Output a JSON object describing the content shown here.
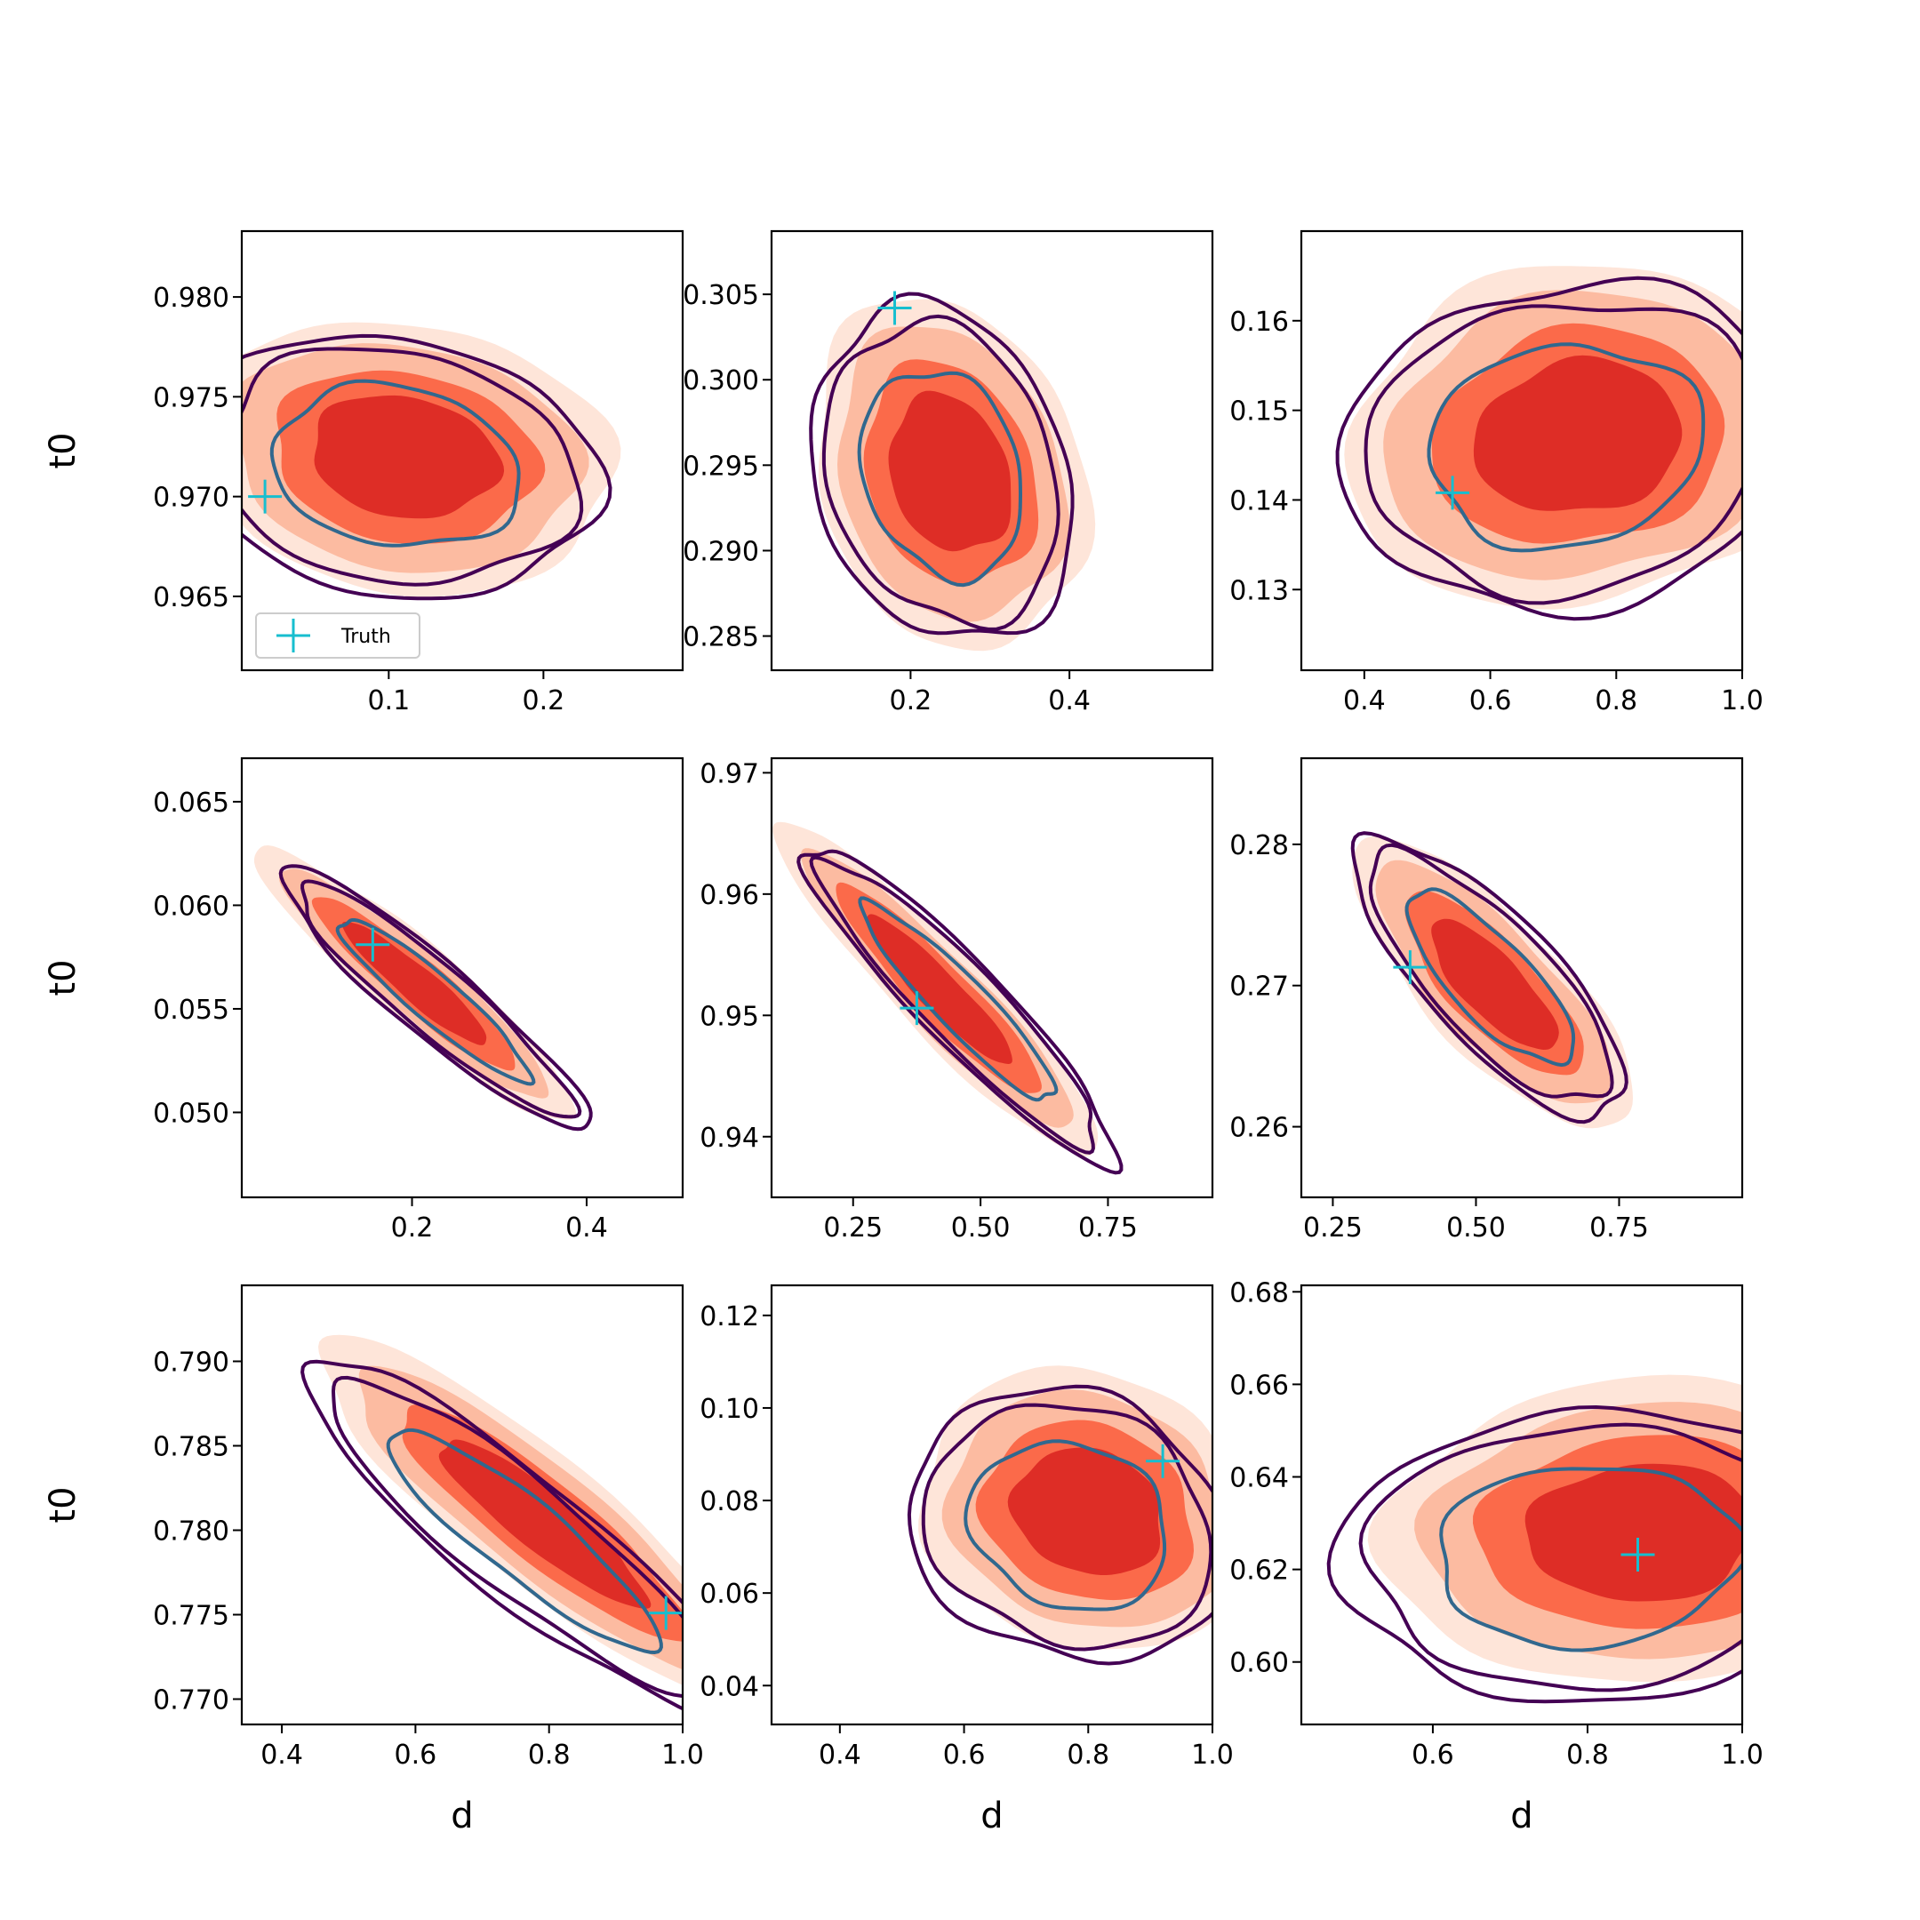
{
  "colors": {
    "fill_lightest": "#fee5d9",
    "fill_light": "#fcbba1",
    "fill_mid": "#fb6a4a",
    "fill_dark": "#de2d26",
    "contour_outer": "#440154",
    "contour_inner": "#31688e",
    "truth": "#17becf"
  },
  "legend": {
    "label": "Truth",
    "marker": "plus-icon"
  },
  "chart_data": [
    {
      "type": "contour",
      "xlabel": "",
      "ylabel": "t0",
      "xlim": [
        0.005,
        0.29
      ],
      "ylim": [
        0.9613,
        0.9833
      ],
      "xticks": [
        0.1,
        0.2
      ],
      "xticklabels": [
        "0.1",
        "0.2"
      ],
      "yticks": [
        0.965,
        0.97,
        0.975,
        0.98
      ],
      "yticklabels": [
        "0.965",
        "0.970",
        "0.975",
        "0.980"
      ],
      "center": [
        0.105,
        0.9715
      ],
      "spread": [
        0.055,
        0.0028
      ],
      "rho": -0.15,
      "fill_center": [
        0.11,
        0.972
      ],
      "truth": [
        0.02,
        0.97
      ],
      "legend": true
    },
    {
      "type": "contour",
      "xlabel": "",
      "ylabel": "",
      "xlim": [
        0.025,
        0.58
      ],
      "ylim": [
        0.283,
        0.3087
      ],
      "xticks": [
        0.2,
        0.4
      ],
      "xticklabels": [
        "0.2",
        "0.4"
      ],
      "yticks": [
        0.285,
        0.29,
        0.295,
        0.3,
        0.305
      ],
      "yticklabels": [
        "0.285",
        "0.290",
        "0.295",
        "0.300",
        "0.305"
      ],
      "center": [
        0.24,
        0.2945
      ],
      "spread": [
        0.07,
        0.0042
      ],
      "rho": -0.2,
      "fill_center": [
        0.25,
        0.2945
      ],
      "truth": [
        0.18,
        0.3042
      ],
      "legend": false
    },
    {
      "type": "contour",
      "xlabel": "",
      "ylabel": "",
      "xlim": [
        0.3,
        1.0
      ],
      "ylim": [
        0.121,
        0.17
      ],
      "xticks": [
        0.4,
        0.6,
        0.8,
        1.0
      ],
      "xticklabels": [
        "0.4",
        "0.6",
        "0.8",
        "1.0"
      ],
      "yticks": [
        0.13,
        0.14,
        0.15,
        0.16
      ],
      "yticklabels": [
        "0.13",
        "0.14",
        "0.15",
        "0.16"
      ],
      "center": [
        0.72,
        0.146
      ],
      "spread": [
        0.15,
        0.0078
      ],
      "rho": 0.1,
      "fill_center": [
        0.74,
        0.147
      ],
      "truth": [
        0.54,
        0.1408
      ],
      "legend": false
    },
    {
      "type": "contour",
      "xlabel": "",
      "ylabel": "t0",
      "xlim": [
        0.005,
        0.51
      ],
      "ylim": [
        0.0459,
        0.0671
      ],
      "xticks": [
        0.2,
        0.4
      ],
      "xticklabels": [
        "0.2",
        "0.4"
      ],
      "yticks": [
        0.05,
        0.055,
        0.06,
        0.065
      ],
      "yticklabels": [
        "0.050",
        "0.055",
        "0.060",
        "0.065"
      ],
      "center": [
        0.225,
        0.0555
      ],
      "spread": [
        0.075,
        0.0027
      ],
      "rho": -0.93,
      "fill_center": [
        0.205,
        0.0562
      ],
      "truth": [
        0.155,
        0.0581
      ],
      "legend": false
    },
    {
      "type": "contour",
      "xlabel": "",
      "ylabel": "",
      "xlim": [
        0.09,
        0.955
      ],
      "ylim": [
        0.935,
        0.9712
      ],
      "xticks": [
        0.25,
        0.5,
        0.75
      ],
      "xticklabels": [
        "0.25",
        "0.50",
        "0.75"
      ],
      "yticks": [
        0.94,
        0.95,
        0.96,
        0.97
      ],
      "yticklabels": [
        "0.94",
        "0.95",
        "0.96",
        "0.97"
      ],
      "center": [
        0.46,
        0.951
      ],
      "spread": [
        0.13,
        0.0056
      ],
      "rho": -0.93,
      "fill_center": [
        0.42,
        0.952
      ],
      "truth": [
        0.375,
        0.9506
      ],
      "legend": false
    },
    {
      "type": "contour",
      "xlabel": "",
      "ylabel": "",
      "xlim": [
        0.195,
        0.965
      ],
      "ylim": [
        0.255,
        0.2861
      ],
      "xticks": [
        0.25,
        0.5,
        0.75
      ],
      "xticklabels": [
        "0.25",
        "0.50",
        "0.75"
      ],
      "yticks": [
        0.26,
        0.27,
        0.28
      ],
      "yticklabels": [
        "0.26",
        "0.27",
        "0.28"
      ],
      "center": [
        0.525,
        0.2705
      ],
      "spread": [
        0.1,
        0.0042
      ],
      "rho": -0.78,
      "fill_center": [
        0.53,
        0.27
      ],
      "truth": [
        0.385,
        0.2713
      ],
      "legend": false
    },
    {
      "type": "contour",
      "xlabel": "d",
      "ylabel": "t0",
      "xlim": [
        0.34,
        1.0
      ],
      "ylim": [
        0.7685,
        0.7945
      ],
      "xticks": [
        0.4,
        0.6,
        0.8,
        1.0
      ],
      "xticklabels": [
        "0.4",
        "0.6",
        "0.8",
        "1.0"
      ],
      "yticks": [
        0.77,
        0.775,
        0.78,
        0.785,
        0.79
      ],
      "yticklabels": [
        "0.770",
        "0.775",
        "0.780",
        "0.785",
        "0.790"
      ],
      "center": [
        0.76,
        0.7795
      ],
      "spread": [
        0.14,
        0.0045
      ],
      "rho": -0.9,
      "fill_center": [
        0.79,
        0.7805
      ],
      "truth": [
        0.975,
        0.7751
      ],
      "legend": false
    },
    {
      "type": "contour",
      "xlabel": "d",
      "ylabel": "",
      "xlim": [
        0.29,
        1.0
      ],
      "ylim": [
        0.0316,
        0.1265
      ],
      "xticks": [
        0.4,
        0.6,
        0.8,
        1.0
      ],
      "xticklabels": [
        "0.4",
        "0.6",
        "0.8",
        "1.0"
      ],
      "yticks": [
        0.04,
        0.06,
        0.08,
        0.1,
        0.12
      ],
      "yticklabels": [
        "0.04",
        "0.06",
        "0.08",
        "0.10",
        "0.12"
      ],
      "center": [
        0.77,
        0.0745
      ],
      "spread": [
        0.11,
        0.0125
      ],
      "rho": -0.15,
      "fill_center": [
        0.8,
        0.0775
      ],
      "truth": [
        0.92,
        0.0885
      ],
      "legend": false
    },
    {
      "type": "contour",
      "xlabel": "d",
      "ylabel": "",
      "xlim": [
        0.43,
        1.0
      ],
      "ylim": [
        0.5865,
        0.6814
      ],
      "xticks": [
        0.6,
        0.8,
        1.0
      ],
      "xticklabels": [
        "0.6",
        "0.8",
        "1.0"
      ],
      "yticks": [
        0.6,
        0.62,
        0.64,
        0.66,
        0.68
      ],
      "yticklabels": [
        "0.60",
        "0.62",
        "0.64",
        "0.66",
        "0.68"
      ],
      "center": [
        0.8,
        0.623
      ],
      "spread": [
        0.135,
        0.0135
      ],
      "rho": 0.05,
      "fill_center": [
        0.87,
        0.628
      ],
      "truth": [
        0.865,
        0.6232
      ],
      "legend": false
    }
  ]
}
